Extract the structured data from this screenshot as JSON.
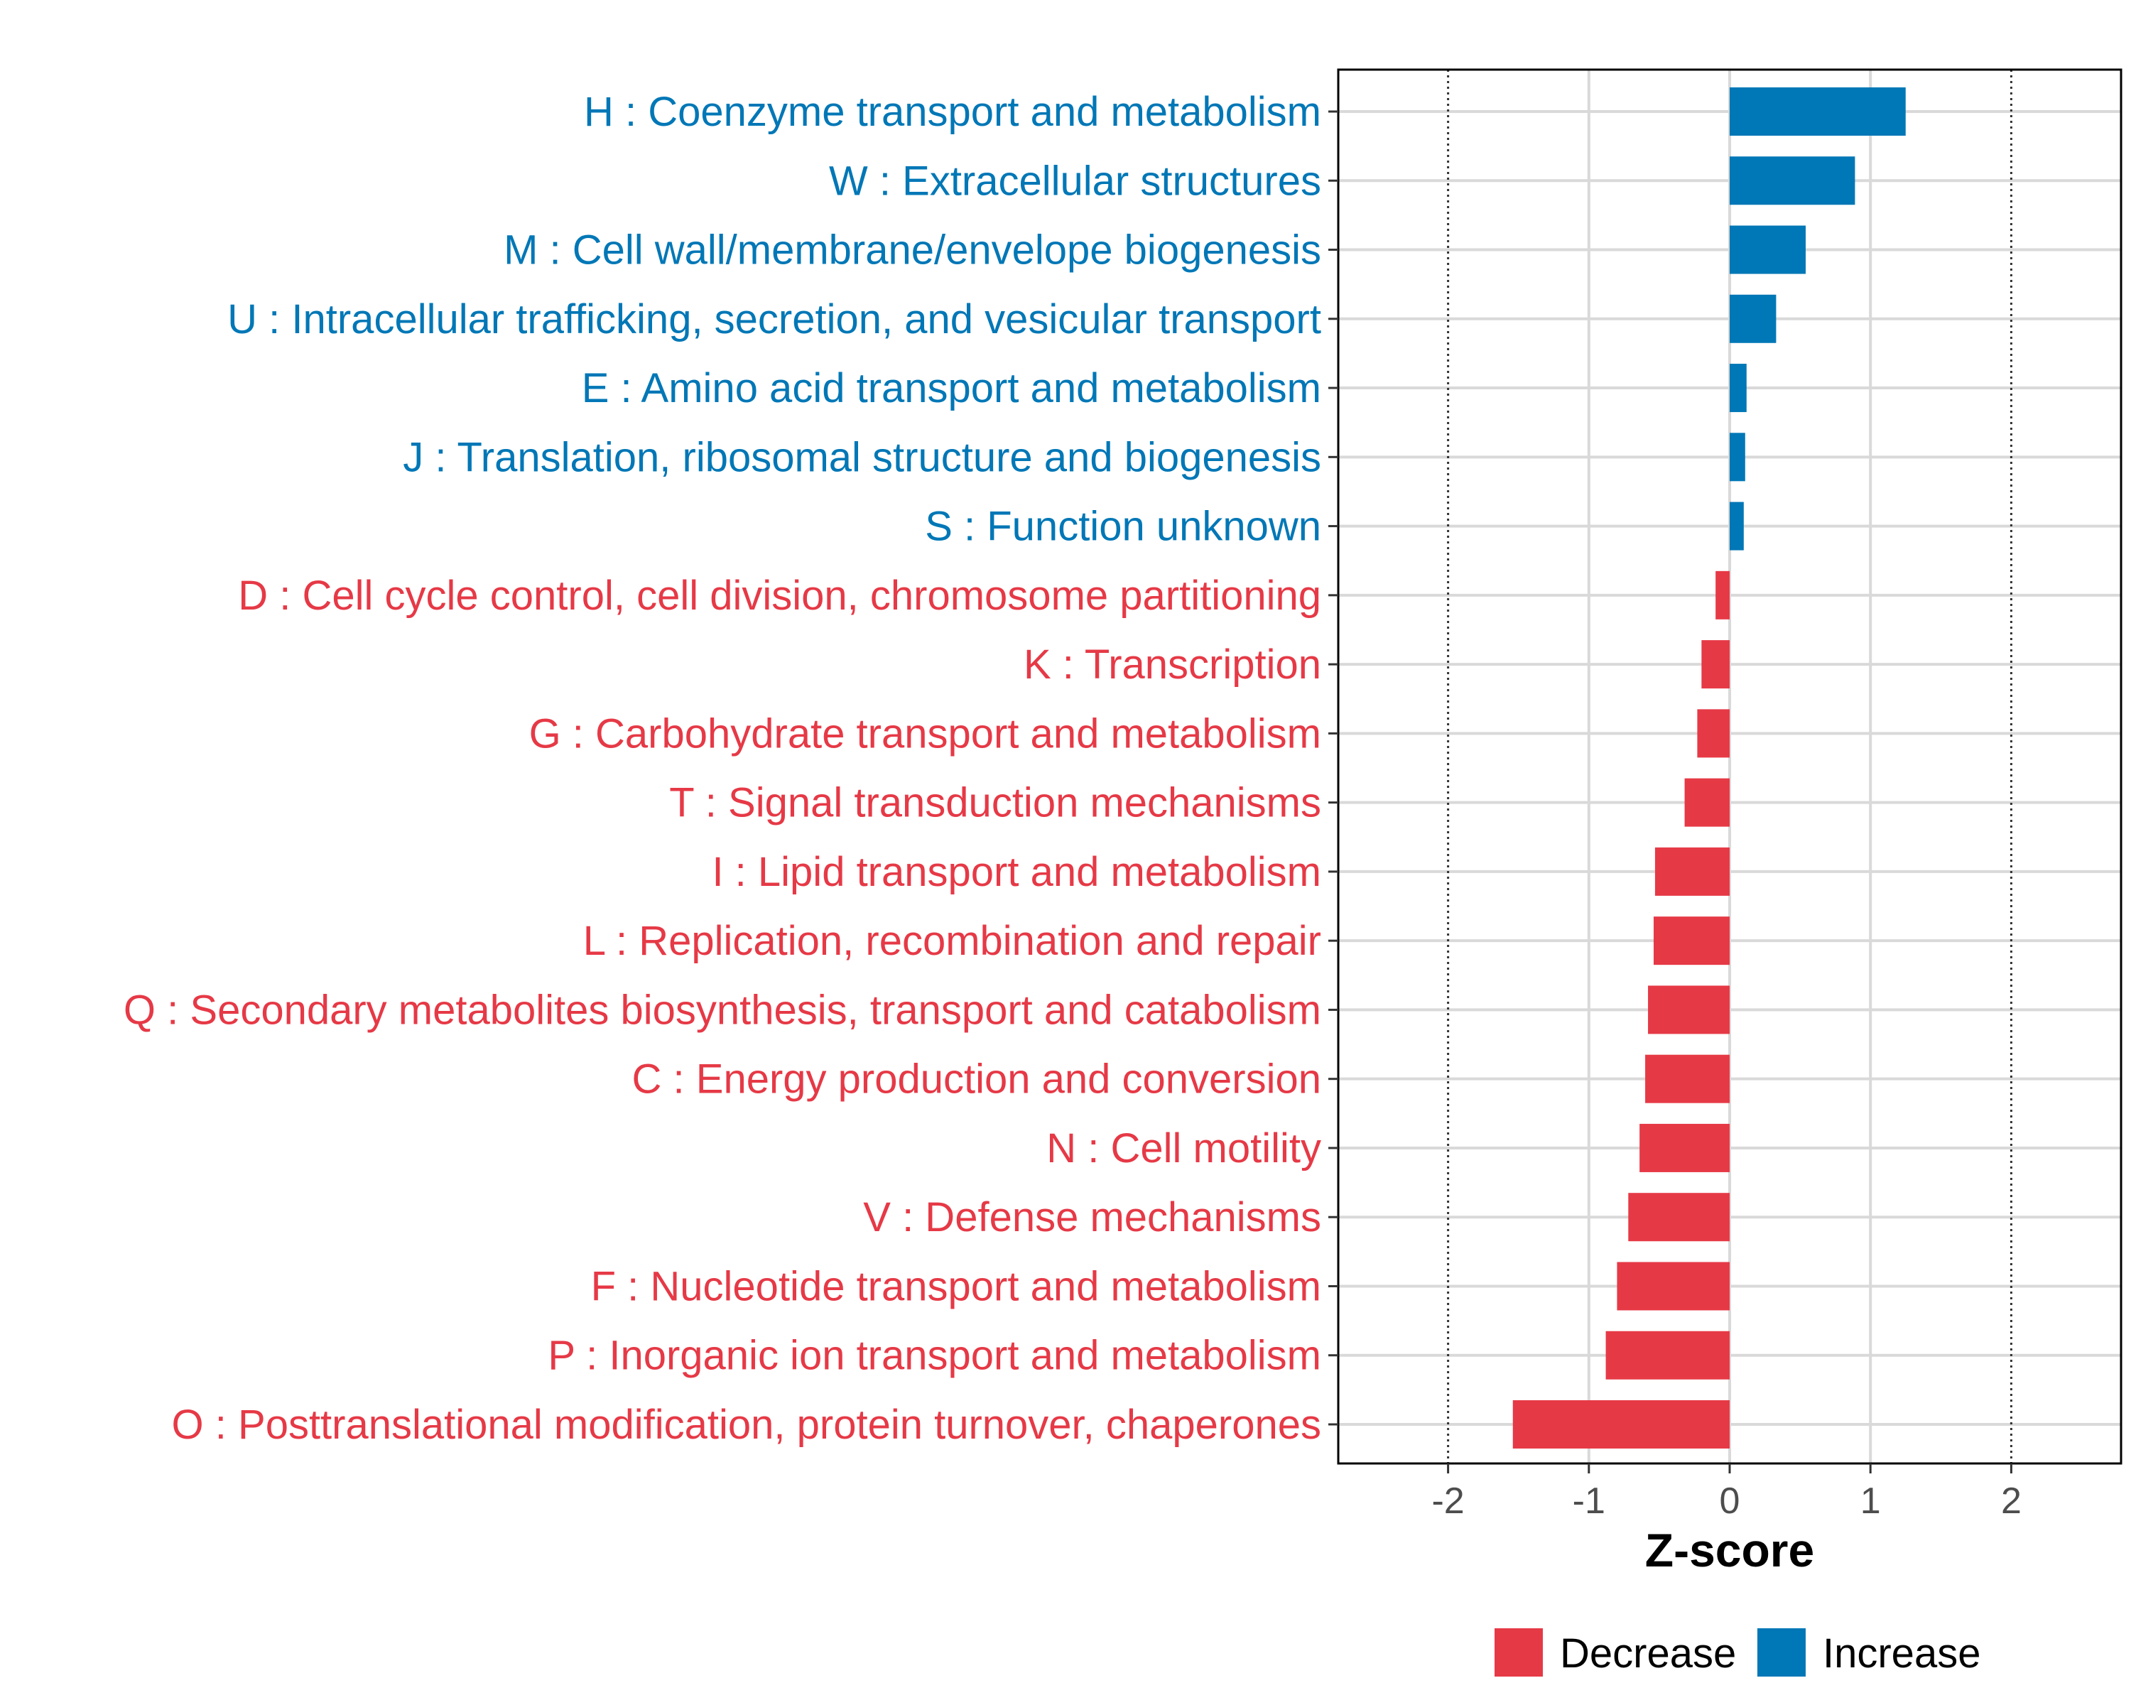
{
  "chart_data": {
    "type": "bar",
    "orientation": "horizontal",
    "xlabel": "Z-score",
    "ylabel": "",
    "xlim": [
      -2.78,
      2.78
    ],
    "xticks": [
      -2,
      -1,
      0,
      1,
      2
    ],
    "xtick_labels": [
      "-2",
      "-1",
      "0",
      "1",
      "2"
    ],
    "reference_lines": [
      -2,
      2
    ],
    "grid": true,
    "legend_position": "bottom",
    "colors": {
      "Decrease": "#e63946",
      "Increase": "#0077b6"
    },
    "legend": [
      {
        "label": "Decrease",
        "color": "#e63946"
      },
      {
        "label": "Increase",
        "color": "#0077b6"
      }
    ],
    "bars": [
      {
        "label": "H : Coenzyme transport and metabolism",
        "value": 1.25,
        "group": "Increase"
      },
      {
        "label": "W : Extracellular structures",
        "value": 0.89,
        "group": "Increase"
      },
      {
        "label": "M : Cell wall/membrane/envelope biogenesis",
        "value": 0.54,
        "group": "Increase"
      },
      {
        "label": "U : Intracellular trafficking, secretion, and vesicular transport",
        "value": 0.33,
        "group": "Increase"
      },
      {
        "label": "E : Amino acid transport and metabolism",
        "value": 0.12,
        "group": "Increase"
      },
      {
        "label": "J : Translation, ribosomal structure and biogenesis",
        "value": 0.11,
        "group": "Increase"
      },
      {
        "label": "S : Function unknown",
        "value": 0.1,
        "group": "Increase"
      },
      {
        "label": "D : Cell cycle control, cell division, chromosome partitioning",
        "value": -0.1,
        "group": "Decrease"
      },
      {
        "label": "K : Transcription",
        "value": -0.2,
        "group": "Decrease"
      },
      {
        "label": "G : Carbohydrate transport and metabolism",
        "value": -0.23,
        "group": "Decrease"
      },
      {
        "label": "T : Signal transduction mechanisms",
        "value": -0.32,
        "group": "Decrease"
      },
      {
        "label": "I : Lipid transport and metabolism",
        "value": -0.53,
        "group": "Decrease"
      },
      {
        "label": "L : Replication, recombination and repair",
        "value": -0.54,
        "group": "Decrease"
      },
      {
        "label": "Q : Secondary metabolites biosynthesis, transport and catabolism",
        "value": -0.58,
        "group": "Decrease"
      },
      {
        "label": "C : Energy production and conversion",
        "value": -0.6,
        "group": "Decrease"
      },
      {
        "label": "N : Cell motility",
        "value": -0.64,
        "group": "Decrease"
      },
      {
        "label": "V : Defense mechanisms",
        "value": -0.72,
        "group": "Decrease"
      },
      {
        "label": "F : Nucleotide transport and metabolism",
        "value": -0.8,
        "group": "Decrease"
      },
      {
        "label": "P : Inorganic ion transport and metabolism",
        "value": -0.88,
        "group": "Decrease"
      },
      {
        "label": "O : Posttranslational modification, protein turnover, chaperones",
        "value": -1.54,
        "group": "Decrease"
      }
    ]
  }
}
